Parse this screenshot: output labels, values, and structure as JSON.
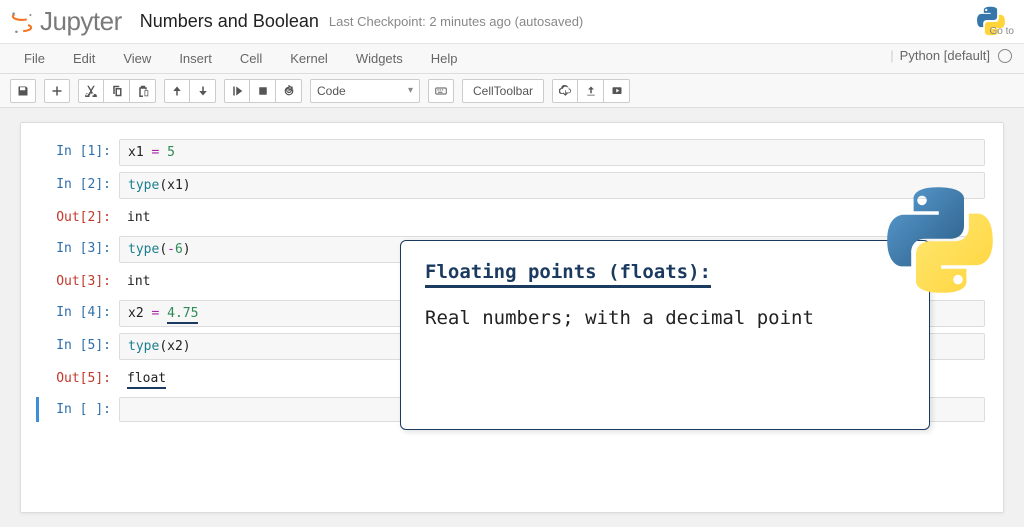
{
  "header": {
    "logo_text": "Jupyter",
    "notebook_title": "Numbers and Boolean",
    "checkpoint": "Last Checkpoint: 2 minutes ago (autosaved)",
    "goto": "Go to"
  },
  "menubar": {
    "items": [
      "File",
      "Edit",
      "View",
      "Insert",
      "Cell",
      "Kernel",
      "Widgets",
      "Help"
    ],
    "kernel_name": "Python [default]"
  },
  "toolbar": {
    "cell_type": "Code",
    "cell_toolbar_label": "CellToolbar"
  },
  "cells": [
    {
      "kind": "in",
      "n": "1",
      "code_html": "x1 <span class='op'>=</span> <span class='num'>5</span>"
    },
    {
      "kind": "in",
      "n": "2",
      "code_html": "<span class='fn'>type</span>(x1)"
    },
    {
      "kind": "out",
      "n": "2",
      "text": "int"
    },
    {
      "kind": "in",
      "n": "3",
      "code_html": "<span class='fn'>type</span>(<span class='op'>-</span><span class='num'>6</span>)"
    },
    {
      "kind": "out",
      "n": "3",
      "text": "int"
    },
    {
      "kind": "in",
      "n": "4",
      "code_html": "x2 <span class='op'>=</span> <span class='num underline-thick'>4.75</span>"
    },
    {
      "kind": "in",
      "n": "5",
      "code_html": "<span class='fn'>type</span>(x2)"
    },
    {
      "kind": "out",
      "n": "5",
      "text_html": "<span class='underline-thick'>float</span>"
    },
    {
      "kind": "in",
      "n": " ",
      "code_html": "",
      "current": true
    }
  ],
  "annotation": {
    "title": "Floating points (floats):",
    "body": "Real numbers; with a decimal point"
  },
  "colors": {
    "jupyter_orange": "#f37626",
    "in_prompt": "#2f6fab",
    "out_prompt": "#c1392b",
    "annotation_border": "#1a3a5f",
    "python_blue": "#3776ab",
    "python_yellow": "#ffd43b"
  }
}
